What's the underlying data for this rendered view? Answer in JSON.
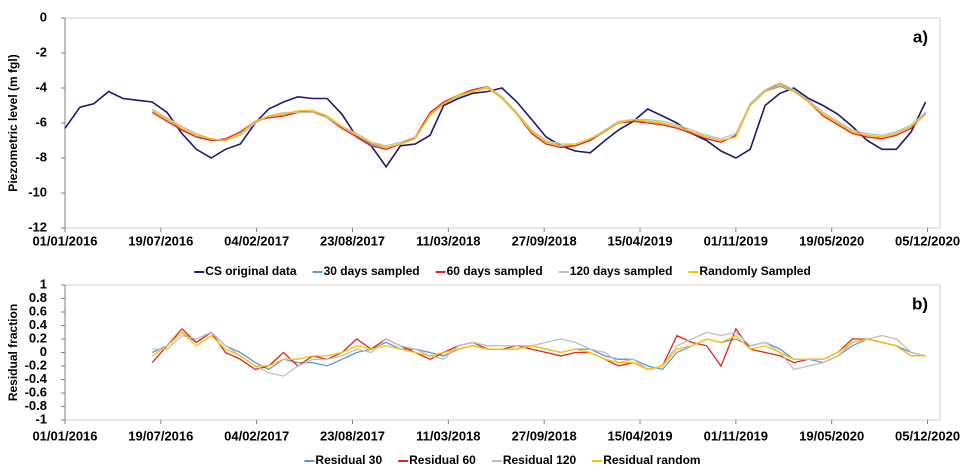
{
  "chart_data": [
    {
      "type": "line",
      "annotation": "a)",
      "y_label": "Piezometric level (m fgl)",
      "x": [
        "01/01/2016",
        "01/02/2016",
        "01/03/2016",
        "01/04/2016",
        "01/05/2016",
        "01/06/2016",
        "01/07/2016",
        "01/08/2016",
        "01/09/2016",
        "01/10/2016",
        "01/11/2016",
        "01/12/2016",
        "01/01/2017",
        "01/02/2017",
        "01/03/2017",
        "01/04/2017",
        "01/05/2017",
        "01/06/2017",
        "01/07/2017",
        "01/08/2017",
        "01/09/2017",
        "01/10/2017",
        "01/11/2017",
        "01/12/2017",
        "01/01/2018",
        "01/02/2018",
        "01/03/2018",
        "01/04/2018",
        "01/05/2018",
        "01/06/2018",
        "01/07/2018",
        "01/08/2018",
        "01/09/2018",
        "01/10/2018",
        "01/11/2018",
        "01/12/2018",
        "01/01/2019",
        "01/02/2019",
        "01/03/2019",
        "01/04/2019",
        "01/05/2019",
        "01/06/2019",
        "01/07/2019",
        "01/08/2019",
        "01/09/2019",
        "01/10/2019",
        "01/11/2019",
        "01/12/2019",
        "01/01/2020",
        "01/02/2020",
        "01/03/2020",
        "01/04/2020",
        "01/05/2020",
        "01/06/2020",
        "01/07/2020",
        "01/08/2020",
        "01/09/2020",
        "01/10/2020",
        "01/11/2020",
        "01/12/2020"
      ],
      "xlim": [
        "01/01/2016",
        "31/12/2020"
      ],
      "xticks": [
        "01/01/2016",
        "19/07/2016",
        "04/02/2017",
        "23/08/2017",
        "11/03/2018",
        "27/09/2018",
        "15/04/2019",
        "01/11/2019",
        "19/05/2020",
        "05/12/2020"
      ],
      "ylim": [
        -12,
        0
      ],
      "yticks": [
        -12,
        -10,
        -8,
        -6,
        -4,
        -2,
        0
      ],
      "legend": "bottom",
      "series": [
        {
          "name": "CS original data",
          "color": "#1f1a6e",
          "values": [
            -6.3,
            -5.1,
            -4.9,
            -4.2,
            -4.6,
            -4.7,
            -4.8,
            -5.4,
            -6.6,
            -7.5,
            -8.0,
            -7.5,
            -7.2,
            -6.0,
            -5.2,
            -4.8,
            -4.5,
            -4.6,
            -4.6,
            -5.5,
            -6.8,
            -7.3,
            -8.5,
            -7.3,
            -7.2,
            -6.7,
            -5.0,
            -4.6,
            -4.3,
            -4.2,
            -4.0,
            -4.8,
            -5.8,
            -6.8,
            -7.3,
            -7.6,
            -7.7,
            -7.0,
            -6.4,
            -5.9,
            -5.2,
            -5.6,
            -6.0,
            -6.6,
            -7.0,
            -7.6,
            -8.0,
            -7.5,
            -5.0,
            -4.3,
            -4.0,
            -4.6,
            -5.0,
            -5.5,
            -6.2,
            -7.0,
            -7.5,
            -7.5,
            -6.5,
            -4.8
          ]
        },
        {
          "name": "30 days sampled",
          "color": "#5b9bd5",
          "values": [
            null,
            null,
            null,
            null,
            null,
            null,
            -5.3,
            -5.8,
            -6.3,
            -6.7,
            -7.0,
            -7.0,
            -6.6,
            -5.9,
            -5.6,
            -5.5,
            -5.4,
            -5.3,
            -5.6,
            -6.2,
            -6.7,
            -7.2,
            -7.4,
            -7.2,
            -6.9,
            -5.5,
            -4.9,
            -4.5,
            -4.2,
            -4.0,
            -4.6,
            -5.5,
            -6.5,
            -7.1,
            -7.3,
            -7.3,
            -7.0,
            -6.5,
            -6.0,
            -5.9,
            -5.9,
            -6.0,
            -6.2,
            -6.5,
            -6.8,
            -7.0,
            -6.8,
            -5.0,
            -4.2,
            -3.9,
            -4.2,
            -4.8,
            -5.5,
            -6.0,
            -6.5,
            -6.7,
            -6.8,
            -6.6,
            -6.2,
            -5.5
          ]
        },
        {
          "name": "60 days sampled",
          "color": "#e0261c",
          "values": [
            null,
            null,
            null,
            null,
            null,
            null,
            -5.4,
            -5.9,
            -6.4,
            -6.8,
            -7.0,
            -6.9,
            -6.5,
            -5.9,
            -5.7,
            -5.6,
            -5.4,
            -5.3,
            -5.7,
            -6.3,
            -6.8,
            -7.3,
            -7.5,
            -7.2,
            -6.8,
            -5.4,
            -4.8,
            -4.4,
            -4.1,
            -3.9,
            -4.5,
            -5.5,
            -6.6,
            -7.2,
            -7.4,
            -7.3,
            -7.0,
            -6.4,
            -6.0,
            -5.9,
            -6.0,
            -6.1,
            -6.3,
            -6.6,
            -6.9,
            -7.1,
            -6.7,
            -4.9,
            -4.1,
            -3.8,
            -4.1,
            -4.8,
            -5.6,
            -6.1,
            -6.6,
            -6.8,
            -6.9,
            -6.7,
            -6.3,
            -5.4
          ]
        },
        {
          "name": "120 days sampled",
          "color": "#bfbfbf",
          "values": [
            null,
            null,
            null,
            null,
            null,
            null,
            -5.2,
            -5.7,
            -6.2,
            -6.6,
            -6.9,
            -7.0,
            -6.7,
            -6.0,
            -5.6,
            -5.4,
            -5.4,
            -5.4,
            -5.7,
            -6.2,
            -6.6,
            -7.1,
            -7.3,
            -7.1,
            -6.8,
            -5.6,
            -4.9,
            -4.5,
            -4.2,
            -3.9,
            -4.5,
            -5.4,
            -6.4,
            -7.0,
            -7.2,
            -7.2,
            -6.9,
            -6.4,
            -5.9,
            -5.8,
            -5.8,
            -5.9,
            -6.1,
            -6.4,
            -6.7,
            -6.9,
            -6.6,
            -4.9,
            -4.1,
            -3.7,
            -4.1,
            -4.7,
            -5.4,
            -5.9,
            -6.4,
            -6.6,
            -6.7,
            -6.5,
            -6.1,
            -5.4
          ]
        },
        {
          "name": "Randomly Sampled",
          "color": "#ffc000",
          "values": [
            null,
            null,
            null,
            null,
            null,
            null,
            -5.3,
            -5.8,
            -6.3,
            -6.7,
            -6.9,
            -7.0,
            -6.6,
            -5.9,
            -5.6,
            -5.5,
            -5.3,
            -5.3,
            -5.6,
            -6.2,
            -6.7,
            -7.1,
            -7.4,
            -7.2,
            -6.9,
            -5.5,
            -4.9,
            -4.4,
            -4.2,
            -4.0,
            -4.6,
            -5.5,
            -6.5,
            -7.1,
            -7.3,
            -7.2,
            -6.9,
            -6.5,
            -6.0,
            -5.8,
            -5.9,
            -6.0,
            -6.2,
            -6.5,
            -6.8,
            -7.0,
            -6.8,
            -5.0,
            -4.2,
            -3.8,
            -4.2,
            -4.8,
            -5.5,
            -6.0,
            -6.5,
            -6.7,
            -6.8,
            -6.6,
            -6.2,
            -5.5
          ]
        }
      ]
    },
    {
      "type": "line",
      "annotation": "b)",
      "y_label": "Residual fraction",
      "x": [
        "01/01/2016",
        "01/02/2016",
        "01/03/2016",
        "01/04/2016",
        "01/05/2016",
        "01/06/2016",
        "01/07/2016",
        "01/08/2016",
        "01/09/2016",
        "01/10/2016",
        "01/11/2016",
        "01/12/2016",
        "01/01/2017",
        "01/02/2017",
        "01/03/2017",
        "01/04/2017",
        "01/05/2017",
        "01/06/2017",
        "01/07/2017",
        "01/08/2017",
        "01/09/2017",
        "01/10/2017",
        "01/11/2017",
        "01/12/2017",
        "01/01/2018",
        "01/02/2018",
        "01/03/2018",
        "01/04/2018",
        "01/05/2018",
        "01/06/2018",
        "01/07/2018",
        "01/08/2018",
        "01/09/2018",
        "01/10/2018",
        "01/11/2018",
        "01/12/2018",
        "01/01/2019",
        "01/02/2019",
        "01/03/2019",
        "01/04/2019",
        "01/05/2019",
        "01/06/2019",
        "01/07/2019",
        "01/08/2019",
        "01/09/2019",
        "01/10/2019",
        "01/11/2019",
        "01/12/2019",
        "01/01/2020",
        "01/02/2020",
        "01/03/2020",
        "01/04/2020",
        "01/05/2020",
        "01/06/2020",
        "01/07/2020",
        "01/08/2020",
        "01/09/2020",
        "01/10/2020",
        "01/11/2020",
        "01/12/2020"
      ],
      "xlim": [
        "01/01/2016",
        "31/12/2020"
      ],
      "xticks": [
        "01/01/2016",
        "19/07/2016",
        "04/02/2017",
        "23/08/2017",
        "11/03/2018",
        "27/09/2018",
        "15/04/2019",
        "01/11/2019",
        "19/05/2020",
        "05/12/2020"
      ],
      "ylim": [
        -1,
        1
      ],
      "yticks": [
        -1,
        -0.8,
        -0.6,
        -0.4,
        -0.2,
        0,
        0.2,
        0.4,
        0.6,
        0.8,
        1
      ],
      "legend": "bottom",
      "series": [
        {
          "name": "Residual 30",
          "color": "#5b9bd5",
          "values": [
            null,
            null,
            null,
            null,
            null,
            null,
            0.0,
            0.1,
            0.3,
            0.15,
            0.3,
            0.1,
            0.0,
            -0.15,
            -0.25,
            -0.1,
            -0.15,
            -0.15,
            -0.2,
            -0.1,
            0.0,
            0.05,
            0.15,
            0.05,
            0.05,
            0.0,
            -0.05,
            0.05,
            0.1,
            0.05,
            0.05,
            0.05,
            0.1,
            0.05,
            0.0,
            0.05,
            0.05,
            -0.05,
            -0.1,
            -0.1,
            -0.2,
            -0.25,
            0.0,
            0.1,
            0.2,
            0.15,
            0.2,
            0.1,
            0.15,
            0.05,
            -0.1,
            -0.1,
            -0.15,
            -0.05,
            0.1,
            0.2,
            0.15,
            0.1,
            0.0,
            -0.05
          ]
        },
        {
          "name": "Residual 60",
          "color": "#e0261c",
          "values": [
            null,
            null,
            null,
            null,
            null,
            null,
            -0.15,
            0.1,
            0.35,
            0.15,
            0.3,
            0.0,
            -0.1,
            -0.25,
            -0.2,
            0.0,
            -0.2,
            -0.05,
            -0.1,
            0.0,
            0.2,
            0.05,
            0.2,
            0.1,
            0.0,
            -0.1,
            0.0,
            0.1,
            0.15,
            0.05,
            0.05,
            0.1,
            0.05,
            0.0,
            -0.05,
            0.0,
            0.0,
            -0.1,
            -0.2,
            -0.15,
            -0.25,
            -0.2,
            0.25,
            0.15,
            0.1,
            -0.2,
            0.35,
            0.05,
            0.0,
            -0.05,
            -0.15,
            -0.1,
            -0.1,
            0.0,
            0.2,
            0.2,
            0.15,
            0.1,
            -0.05,
            -0.05
          ]
        },
        {
          "name": "Residual 120",
          "color": "#bfbfbf",
          "values": [
            null,
            null,
            null,
            null,
            null,
            null,
            0.05,
            0.05,
            0.25,
            0.2,
            0.3,
            0.1,
            -0.05,
            -0.2,
            -0.3,
            -0.35,
            -0.2,
            -0.1,
            -0.1,
            -0.05,
            0.05,
            0.0,
            0.2,
            0.1,
            0.05,
            -0.05,
            -0.1,
            0.1,
            0.15,
            0.1,
            0.1,
            0.1,
            0.1,
            0.15,
            0.2,
            0.15,
            0.05,
            0.0,
            -0.15,
            -0.1,
            -0.25,
            -0.2,
            0.1,
            0.2,
            0.3,
            0.25,
            0.3,
            0.1,
            0.15,
            0.0,
            -0.25,
            -0.2,
            -0.15,
            -0.05,
            0.15,
            0.2,
            0.25,
            0.2,
            0.0,
            -0.05
          ]
        },
        {
          "name": "Residual random",
          "color": "#ffc000",
          "values": [
            null,
            null,
            null,
            null,
            null,
            null,
            -0.05,
            0.1,
            0.3,
            0.1,
            0.25,
            0.05,
            -0.05,
            -0.2,
            -0.2,
            -0.1,
            -0.1,
            -0.05,
            -0.05,
            0.0,
            0.1,
            0.05,
            0.1,
            0.05,
            0.0,
            -0.05,
            0.0,
            0.05,
            0.1,
            0.05,
            0.05,
            0.05,
            0.1,
            0.05,
            0.0,
            0.05,
            0.0,
            -0.1,
            -0.15,
            -0.15,
            -0.25,
            -0.2,
            0.05,
            0.1,
            0.2,
            0.15,
            0.25,
            0.05,
            0.1,
            0.0,
            -0.1,
            -0.1,
            -0.1,
            0.0,
            0.15,
            0.2,
            0.15,
            0.1,
            -0.05,
            -0.05
          ]
        }
      ]
    }
  ]
}
